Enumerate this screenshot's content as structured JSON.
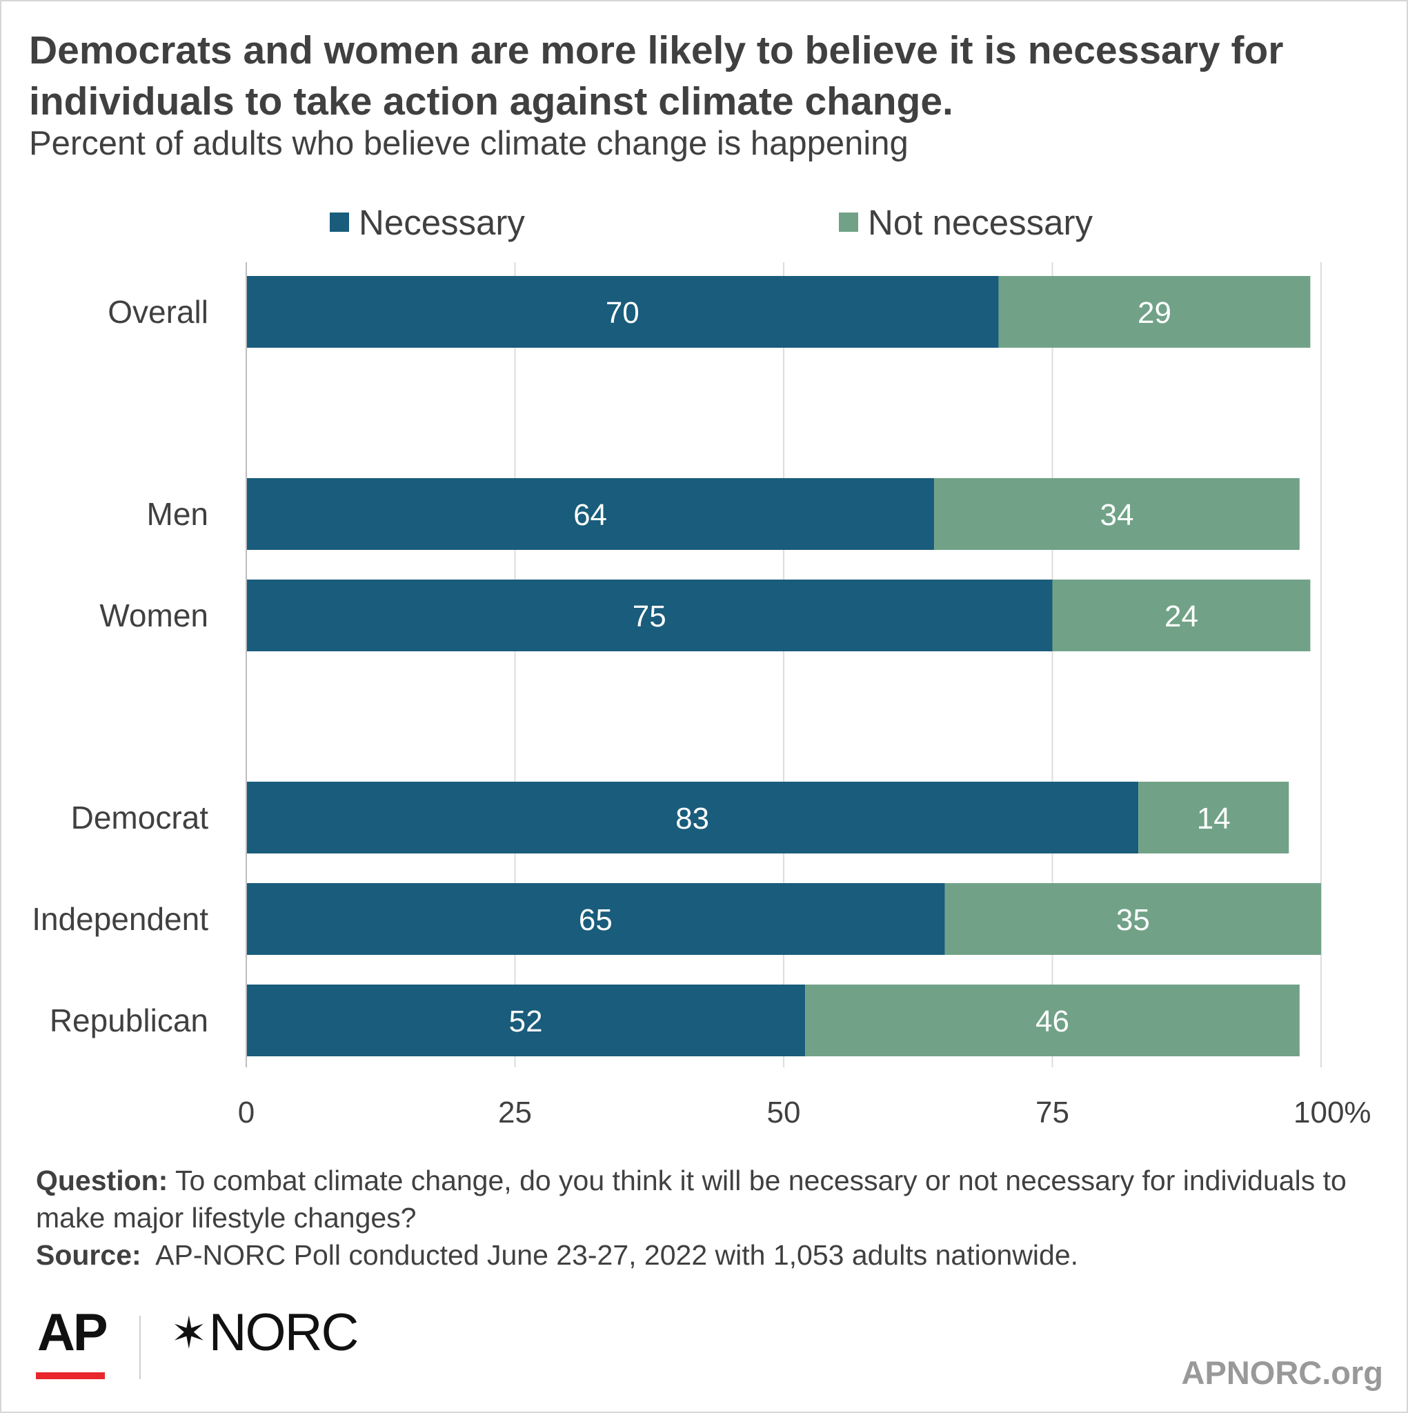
{
  "title": "Democrats and women are more likely to believe it is necessary for individuals to take action against climate change.",
  "subtitle": "Percent of adults who believe climate change is happening",
  "colors": {
    "necessary": "#195c7b",
    "not_necessary": "#71a287",
    "grid": "#dcdcdc",
    "text": "#404040"
  },
  "legend": {
    "necessary": "Necessary",
    "not_necessary": "Not necessary"
  },
  "chart_data": {
    "type": "bar",
    "orientation": "horizontal",
    "stacked": true,
    "categories": [
      "Overall",
      "Men",
      "Women",
      "Democrat",
      "Independent",
      "Republican"
    ],
    "groups": [
      [
        "Overall"
      ],
      [
        "Men",
        "Women"
      ],
      [
        "Democrat",
        "Independent",
        "Republican"
      ]
    ],
    "series": [
      {
        "name": "Necessary",
        "values": [
          70,
          64,
          75,
          83,
          65,
          52
        ]
      },
      {
        "name": "Not necessary",
        "values": [
          29,
          34,
          24,
          14,
          35,
          46
        ]
      }
    ],
    "xlim": [
      0,
      100
    ],
    "xticks": [
      0,
      25,
      50,
      75,
      100
    ],
    "xtick_labels": [
      "0",
      "25",
      "50",
      "75",
      "100%"
    ],
    "grid": true,
    "legend_position": "top"
  },
  "footnote": {
    "question_label": "Question:",
    "question_text": " To combat climate change, do you think it will be necessary or not necessary for individuals to make major lifestyle changes?",
    "source_label": "Source:",
    "source_text": "  AP-NORC Poll conducted June 23-27, 2022 with 1,053 adults nationwide."
  },
  "logos": {
    "ap": "AP",
    "norc": "NORC",
    "norc_mark": "star-icon"
  },
  "site": "APNORC.org"
}
